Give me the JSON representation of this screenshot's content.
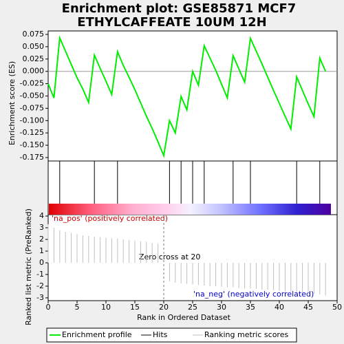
{
  "chart_data": {
    "type": "gsea",
    "title": [
      "Enrichment plot: GSE85871 MCF7",
      "ETHYLCAFFEATE 10UM 12H"
    ],
    "ylabel": "Enrichment score (ES)",
    "metric_ylabel": "Ranked list metric (PreRanked)",
    "xlabel": "Rank in Ordered Dataset",
    "x": [
      0,
      1,
      2,
      3,
      4,
      5,
      6,
      7,
      8,
      9,
      10,
      11,
      12,
      13,
      14,
      15,
      16,
      17,
      18,
      19,
      20,
      21,
      22,
      23,
      24,
      25,
      26,
      27,
      28,
      29,
      30,
      31,
      32,
      33,
      34,
      35,
      36,
      37,
      38,
      39,
      40,
      41,
      42,
      43,
      44,
      45,
      46,
      47,
      48
    ],
    "es": {
      "name": "Enrichment profile",
      "color": "#00ee00",
      "values": [
        -0.025,
        -0.054,
        0.068,
        0.041,
        0.014,
        -0.013,
        -0.036,
        -0.063,
        0.033,
        0.006,
        -0.02,
        -0.047,
        0.04,
        0.012,
        -0.012,
        -0.037,
        -0.064,
        -0.091,
        -0.116,
        -0.143,
        -0.171,
        -0.1,
        -0.125,
        -0.051,
        -0.078,
        0.0,
        -0.028,
        0.052,
        0.027,
        0.002,
        -0.026,
        -0.054,
        0.032,
        0.005,
        -0.022,
        0.067,
        0.041,
        0.015,
        -0.012,
        -0.039,
        -0.065,
        -0.091,
        -0.117,
        -0.011,
        -0.039,
        -0.066,
        -0.092,
        0.027,
        0.0
      ]
    },
    "hits": {
      "name": "Hits",
      "color": "#000000",
      "x": [
        2,
        8,
        12,
        21,
        23,
        25,
        27,
        32,
        35,
        43,
        47
      ]
    },
    "metric": {
      "name": "Ranking metric scores",
      "color": "#c0c0c0",
      "values": [
        3.3,
        3.0,
        2.8,
        2.65,
        2.55,
        2.45,
        2.35,
        2.3,
        2.25,
        2.2,
        2.15,
        2.1,
        2.05,
        2.0,
        1.95,
        1.9,
        1.85,
        1.8,
        1.7,
        1.65,
        0.0,
        -1.6,
        -1.7,
        -1.75,
        -1.8,
        -1.85,
        -1.9,
        -1.95,
        -2.0,
        -2.0,
        -2.05,
        -2.1,
        -2.1,
        -2.15,
        -2.2,
        -2.2,
        -2.25,
        -2.3,
        -2.3,
        -2.35,
        -2.4,
        -2.45,
        -2.5,
        -2.5,
        -2.55,
        -2.6,
        -2.65,
        -2.7,
        -2.8
      ]
    },
    "xlim": [
      0,
      50
    ],
    "xticks": [
      0,
      5,
      10,
      15,
      20,
      25,
      30,
      35,
      40,
      45,
      50
    ],
    "ylim": [
      -0.182,
      0.082
    ],
    "yticks": [
      0.075,
      {
        "value": 0.05,
        "label": "0.050"
      },
      0.025,
      {
        "value": 0,
        "label": "0.000"
      },
      -0.025,
      {
        "value": -0.05,
        "label": "-0.050"
      },
      -0.075,
      {
        "value": -0.1,
        "label": "-0.100"
      },
      -0.125,
      {
        "value": -0.15,
        "label": "-0.150"
      },
      -0.175
    ],
    "metric_ylim": [
      -3.24,
      4.12
    ],
    "metric_yticks": [
      4,
      3,
      2,
      1,
      0,
      -1,
      -2,
      -3
    ],
    "zero_cross": 20,
    "annotations": {
      "pos": "'na_pos' (positively correlated)",
      "zero": "Zero cross at 20",
      "neg": "'na_neg' (negatively correlated)"
    }
  }
}
